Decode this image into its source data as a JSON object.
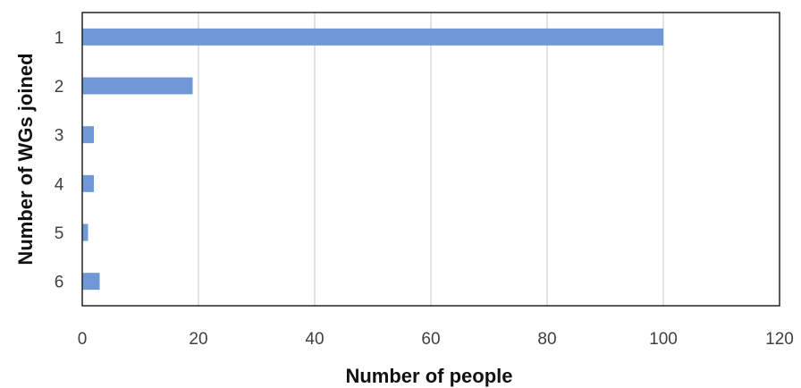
{
  "chart_data": {
    "type": "bar",
    "orientation": "horizontal",
    "categories": [
      "1",
      "2",
      "3",
      "4",
      "5",
      "6"
    ],
    "values": [
      100,
      19,
      2,
      2,
      1,
      3
    ],
    "xlabel": "Number of people",
    "ylabel": "Number of WGs joined",
    "xlim": [
      0,
      120
    ],
    "xticks": [
      0,
      20,
      40,
      60,
      80,
      100,
      120
    ],
    "grid": "vertical",
    "legend": "none",
    "bar_color": "#6f98d6",
    "grid_color": "#d9d9d9",
    "frame_color": "#222222"
  }
}
